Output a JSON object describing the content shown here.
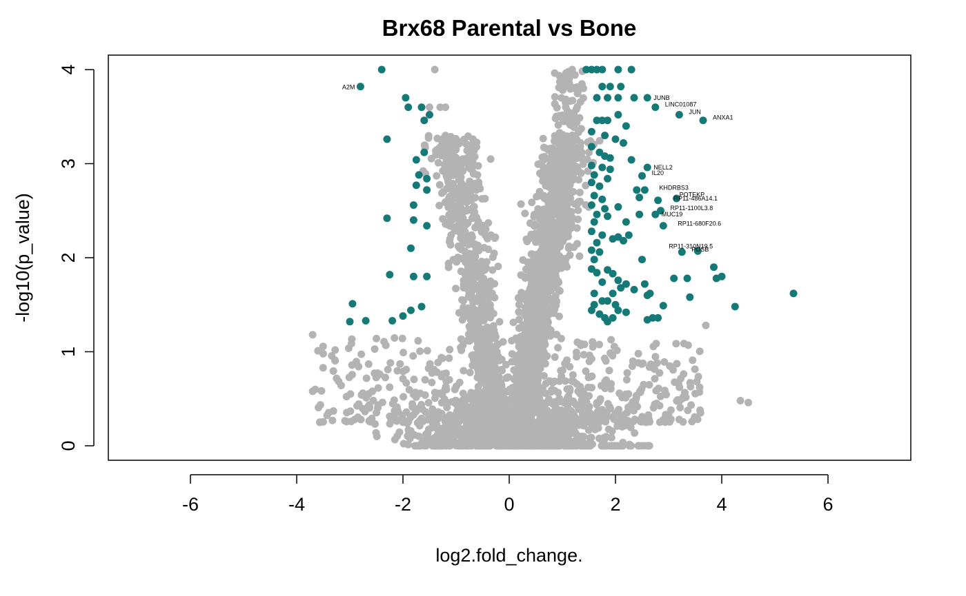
{
  "chart_data": {
    "type": "scatter",
    "title": "Brx68 Parental vs Bone",
    "xlabel": "log2.fold_change.",
    "ylabel": "-log10(p_value)",
    "xlim": [
      -7.5,
      7.5
    ],
    "ylim": [
      -0.15,
      4.15
    ],
    "xticks": [
      -6,
      -4,
      -2,
      0,
      2,
      4,
      6
    ],
    "yticks": [
      0,
      1,
      2,
      3,
      4
    ],
    "grid": false,
    "legend": "none",
    "colors": {
      "significant": "#157A77",
      "nonsignificant": "#B3B3B3"
    },
    "series": [
      {
        "key": "significant",
        "color": "#157A77",
        "points": [
          [
            -2.4,
            4.0
          ],
          [
            -2.8,
            3.82
          ],
          [
            -1.95,
            3.7
          ],
          [
            -1.9,
            3.6
          ],
          [
            -1.65,
            3.6
          ],
          [
            -1.6,
            3.46
          ],
          [
            -1.5,
            3.52
          ],
          [
            -2.3,
            3.26
          ],
          [
            -1.6,
            3.12
          ],
          [
            -1.75,
            3.04
          ],
          [
            -1.55,
            2.84
          ],
          [
            -1.7,
            2.88
          ],
          [
            -1.75,
            2.77
          ],
          [
            -1.55,
            2.72
          ],
          [
            -1.8,
            2.56
          ],
          [
            -1.8,
            2.4
          ],
          [
            -1.55,
            2.34
          ],
          [
            -2.3,
            2.42
          ],
          [
            -1.85,
            2.1
          ],
          [
            -2.25,
            1.82
          ],
          [
            -1.8,
            1.8
          ],
          [
            -1.55,
            1.8
          ],
          [
            -1.65,
            1.48
          ],
          [
            -1.85,
            1.44
          ],
          [
            -2.0,
            1.38
          ],
          [
            -2.2,
            1.33
          ],
          [
            -2.7,
            1.33
          ],
          [
            -2.95,
            1.51
          ],
          [
            -3.0,
            1.32
          ],
          [
            1.45,
            4.0
          ],
          [
            1.55,
            4.0
          ],
          [
            1.65,
            4.0
          ],
          [
            1.75,
            4.0
          ],
          [
            2.05,
            4.0
          ],
          [
            2.3,
            4.0
          ],
          [
            1.75,
            3.82
          ],
          [
            1.9,
            3.82
          ],
          [
            2.1,
            3.82
          ],
          [
            1.65,
            3.7
          ],
          [
            1.85,
            3.7
          ],
          [
            2.05,
            3.7
          ],
          [
            2.35,
            3.7
          ],
          [
            2.6,
            3.7
          ],
          [
            2.75,
            3.6
          ],
          [
            2.05,
            3.52
          ],
          [
            3.2,
            3.52
          ],
          [
            1.65,
            3.46
          ],
          [
            1.75,
            3.46
          ],
          [
            1.85,
            3.46
          ],
          [
            2.2,
            3.4
          ],
          [
            3.65,
            3.46
          ],
          [
            1.55,
            3.34
          ],
          [
            1.8,
            3.3
          ],
          [
            2.0,
            3.26
          ],
          [
            2.15,
            3.22
          ],
          [
            1.55,
            3.18
          ],
          [
            1.7,
            3.12
          ],
          [
            1.8,
            3.08
          ],
          [
            1.9,
            3.06
          ],
          [
            2.3,
            3.04
          ],
          [
            1.55,
            2.98
          ],
          [
            1.75,
            2.96
          ],
          [
            1.9,
            2.94
          ],
          [
            2.6,
            2.96
          ],
          [
            1.6,
            2.88
          ],
          [
            1.85,
            2.84
          ],
          [
            2.5,
            2.87
          ],
          [
            1.55,
            2.8
          ],
          [
            1.7,
            2.76
          ],
          [
            2.4,
            2.72
          ],
          [
            2.55,
            2.72
          ],
          [
            1.6,
            2.66
          ],
          [
            1.75,
            2.62
          ],
          [
            2.45,
            2.64
          ],
          [
            2.8,
            2.61
          ],
          [
            3.15,
            2.63
          ],
          [
            1.55,
            2.56
          ],
          [
            1.8,
            2.52
          ],
          [
            2.05,
            2.54
          ],
          [
            1.65,
            2.46
          ],
          [
            1.85,
            2.44
          ],
          [
            2.45,
            2.46
          ],
          [
            2.75,
            2.46
          ],
          [
            2.85,
            2.5
          ],
          [
            1.6,
            2.38
          ],
          [
            2.2,
            2.38
          ],
          [
            2.9,
            2.34
          ],
          [
            1.55,
            2.28
          ],
          [
            1.75,
            2.24
          ],
          [
            2.05,
            2.22
          ],
          [
            2.25,
            2.24
          ],
          [
            1.65,
            2.16
          ],
          [
            1.95,
            2.2
          ],
          [
            2.15,
            2.18
          ],
          [
            1.55,
            2.08
          ],
          [
            1.7,
            2.06
          ],
          [
            3.25,
            2.06
          ],
          [
            3.55,
            2.07
          ],
          [
            1.6,
            1.98
          ],
          [
            2.5,
            1.98
          ],
          [
            1.55,
            1.88
          ],
          [
            1.85,
            1.87
          ],
          [
            1.65,
            1.84
          ],
          [
            1.95,
            1.83
          ],
          [
            3.85,
            1.9
          ],
          [
            1.75,
            1.74
          ],
          [
            2.05,
            1.76
          ],
          [
            2.2,
            1.72
          ],
          [
            2.55,
            1.72
          ],
          [
            3.1,
            1.78
          ],
          [
            3.35,
            1.78
          ],
          [
            3.9,
            1.78
          ],
          [
            4.0,
            1.8
          ],
          [
            2.1,
            1.68
          ],
          [
            2.35,
            1.66
          ],
          [
            1.6,
            1.62
          ],
          [
            1.95,
            1.62
          ],
          [
            2.6,
            1.6
          ],
          [
            2.65,
            1.62
          ],
          [
            1.75,
            1.54
          ],
          [
            1.85,
            1.54
          ],
          [
            1.6,
            1.5
          ],
          [
            2.0,
            1.5
          ],
          [
            3.4,
            1.58
          ],
          [
            5.35,
            1.62
          ],
          [
            4.25,
            1.48
          ],
          [
            2.9,
            1.49
          ],
          [
            1.55,
            1.44
          ],
          [
            1.7,
            1.4
          ],
          [
            2.05,
            1.44
          ],
          [
            2.2,
            1.42
          ],
          [
            1.8,
            1.36
          ],
          [
            1.95,
            1.36
          ],
          [
            1.85,
            1.32
          ],
          [
            2.6,
            1.34
          ],
          [
            2.7,
            1.36
          ],
          [
            2.8,
            1.36
          ]
        ]
      }
    ],
    "labels": [
      {
        "text": "A2M",
        "x": -2.8,
        "y": 3.82,
        "side": "left"
      },
      {
        "text": "JUNB",
        "x": 2.6,
        "y": 3.7,
        "side": "right"
      },
      {
        "text": "LINC01087",
        "x": 2.75,
        "y": 3.6,
        "side": "right-up"
      },
      {
        "text": "JUN",
        "x": 3.2,
        "y": 3.52,
        "side": "right-up"
      },
      {
        "text": "ANXA1",
        "x": 3.65,
        "y": 3.46,
        "side": "right-up"
      },
      {
        "text": "NELL2",
        "x": 2.6,
        "y": 2.96,
        "side": "right"
      },
      {
        "text": "IL20",
        "x": 2.5,
        "y": 2.87,
        "side": "right-up"
      },
      {
        "text": "KHDRBS3",
        "x": 2.55,
        "y": 2.72,
        "side": "right-far"
      },
      {
        "text": "POTEKP",
        "x": 2.8,
        "y": 2.61,
        "side": "right-high"
      },
      {
        "text": "RP11-486A14.1",
        "x": 3.15,
        "y": 2.63,
        "side": "left-low"
      },
      {
        "text": "RP11-1100L3.8",
        "x": 2.85,
        "y": 2.5,
        "side": "right-up"
      },
      {
        "text": "MUC19",
        "x": 2.75,
        "y": 2.46,
        "side": "right"
      },
      {
        "text": "RP11-680F20.6",
        "x": 2.9,
        "y": 2.34,
        "side": "right-far"
      },
      {
        "text": "POSB",
        "x": 3.25,
        "y": 2.06,
        "side": "right-up"
      },
      {
        "text": "RP11-310N19.5",
        "x": 3.55,
        "y": 2.07,
        "side": "left-up"
      }
    ]
  }
}
